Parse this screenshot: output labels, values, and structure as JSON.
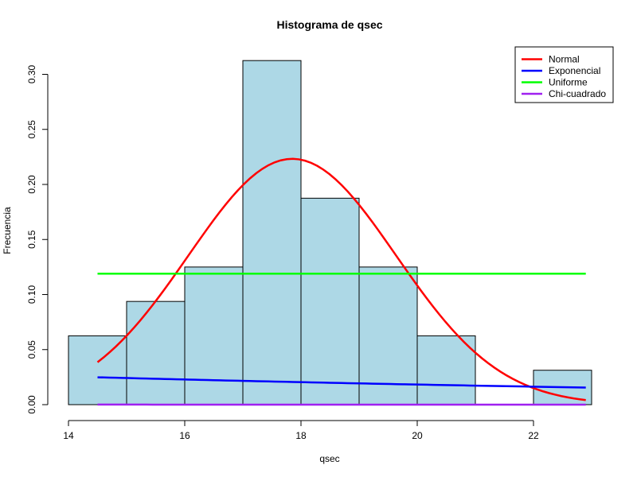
{
  "chart_data": {
    "type": "bar",
    "title": "Histograma de qsec",
    "xlabel": "qsec",
    "ylabel": "Frecuencia",
    "xlim": [
      14,
      23
    ],
    "ylim": [
      0,
      0.3125
    ],
    "x_ticks": [
      "14",
      "16",
      "18",
      "20",
      "22"
    ],
    "y_ticks": [
      "0.00",
      "0.05",
      "0.10",
      "0.15",
      "0.20",
      "0.25",
      "0.30"
    ],
    "bins": [
      {
        "start": 14,
        "end": 15,
        "value": 0.0625
      },
      {
        "start": 15,
        "end": 16,
        "value": 0.09375
      },
      {
        "start": 16,
        "end": 17,
        "value": 0.125
      },
      {
        "start": 17,
        "end": 18,
        "value": 0.3125
      },
      {
        "start": 18,
        "end": 19,
        "value": 0.1875
      },
      {
        "start": 19,
        "end": 20,
        "value": 0.125
      },
      {
        "start": 20,
        "end": 21,
        "value": 0.0625
      },
      {
        "start": 21,
        "end": 22,
        "value": 0
      },
      {
        "start": 22,
        "end": 23,
        "value": 0.03125
      }
    ],
    "bar_color": "#add8e6",
    "series": [
      {
        "name": "Normal",
        "color": "#ff0000",
        "kind": "normal",
        "mean": 17.85,
        "sd": 1.787,
        "x_range": [
          14.5,
          22.9
        ]
      },
      {
        "name": "Exponencial",
        "color": "#0000ff",
        "kind": "exponential",
        "rate": 0.056,
        "x_range": [
          14.5,
          22.9
        ]
      },
      {
        "name": "Uniforme",
        "color": "#00ff00",
        "kind": "uniform",
        "value": 0.119,
        "x_range": [
          14.5,
          22.9
        ]
      },
      {
        "name": "Chi-cuadrado",
        "color": "#a020f0",
        "kind": "chisq",
        "df": 1,
        "x_range": [
          14.5,
          22.9
        ]
      }
    ],
    "legend_position": "top-right",
    "grid": false
  }
}
